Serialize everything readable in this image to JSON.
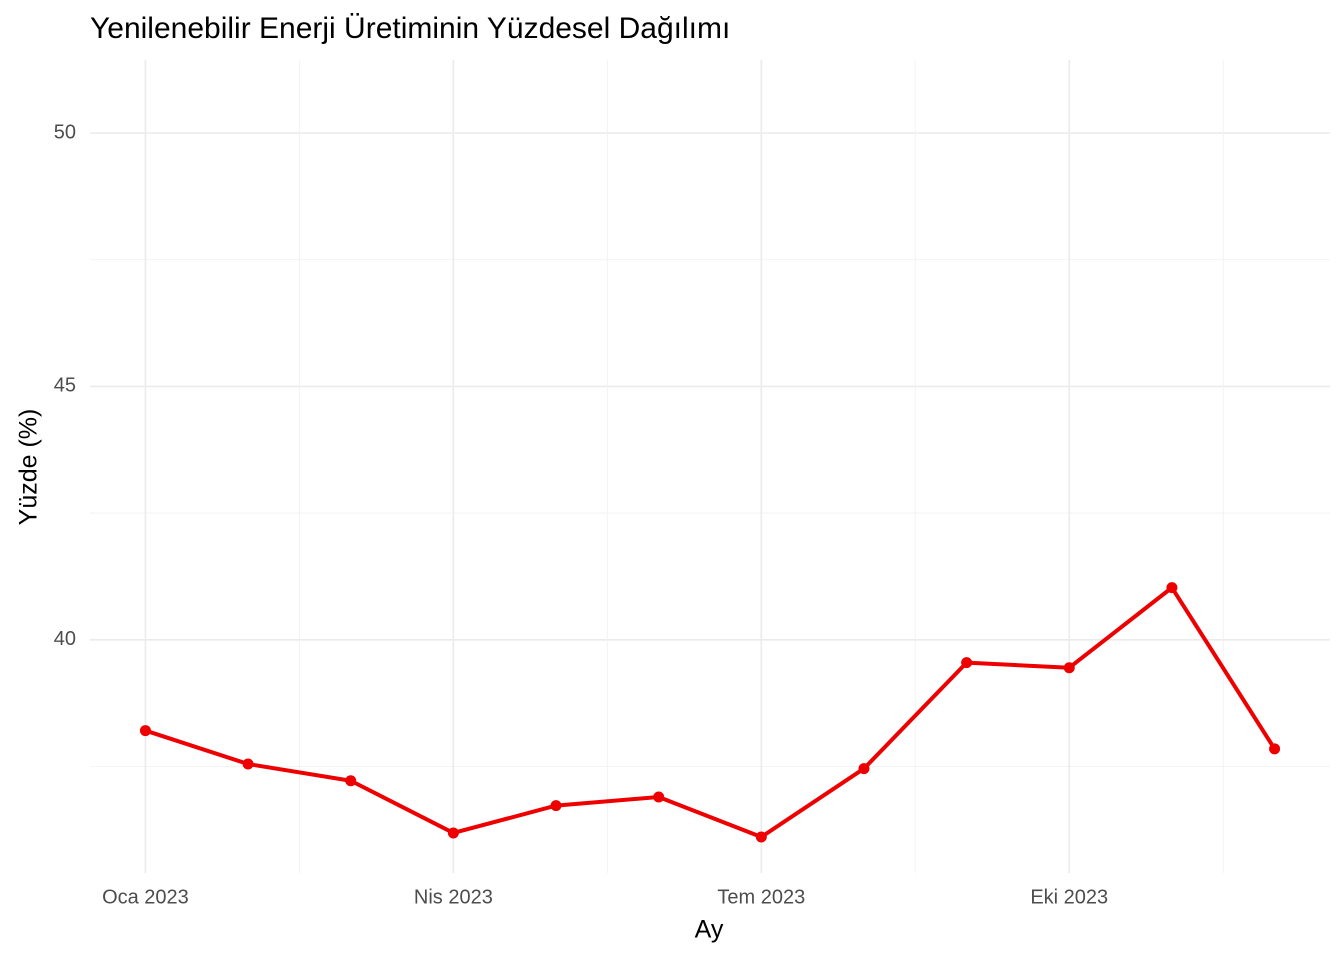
{
  "chart_data": {
    "type": "line",
    "title": "Yenilenebilir Enerji Üretiminin Yüzdesel Dağılımı",
    "x_label": "Ay",
    "y_label": "Yüzde (%)",
    "categories": [
      "Oca 2023",
      null,
      null,
      "Nis 2023",
      null,
      null,
      "Tem 2023",
      null,
      null,
      "Eki 2023",
      null,
      null
    ],
    "series": [
      {
        "name": "Yüzde",
        "color": "#ee0000",
        "values": [
          38.21,
          37.55,
          37.22,
          36.19,
          36.73,
          36.9,
          36.11,
          37.46,
          39.55,
          39.45,
          41.03,
          37.85
        ]
      }
    ],
    "ylim": [
      35.4,
      51.44
    ],
    "yticks": [
      40,
      45,
      50
    ],
    "grid": true
  }
}
